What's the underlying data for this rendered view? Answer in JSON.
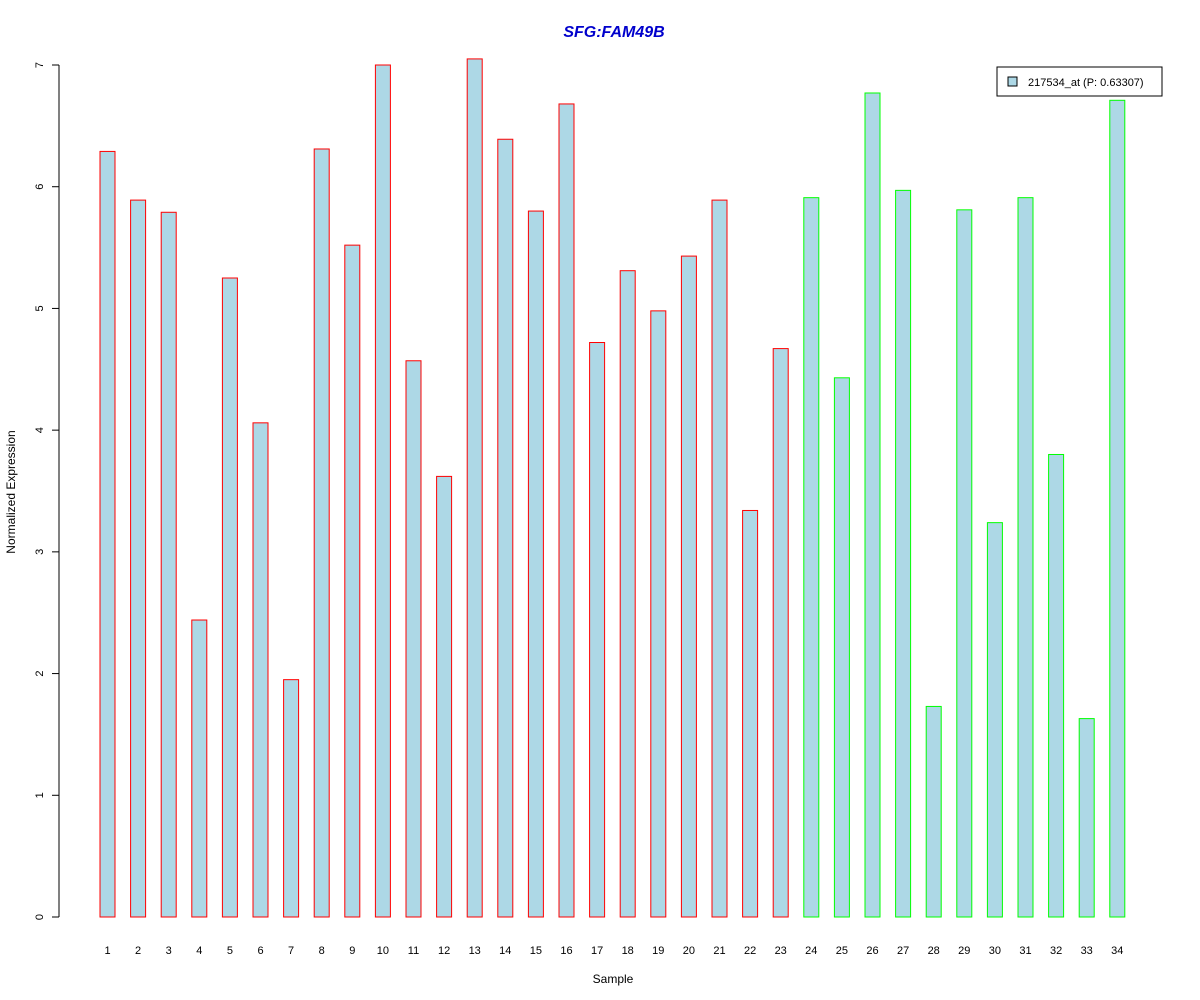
{
  "chart_data": {
    "type": "bar",
    "title": "SFG:FAM49B",
    "xlabel": "Sample",
    "ylabel": "Normalized Expression",
    "ylim": [
      0,
      7
    ],
    "yticks": [
      0,
      1,
      2,
      3,
      4,
      5,
      6,
      7
    ],
    "grid": false,
    "legend_position": "top-right",
    "categories": [
      "1",
      "2",
      "3",
      "4",
      "5",
      "6",
      "7",
      "8",
      "9",
      "10",
      "11",
      "12",
      "13",
      "14",
      "15",
      "16",
      "17",
      "18",
      "19",
      "20",
      "21",
      "22",
      "23",
      "24",
      "25",
      "26",
      "27",
      "28",
      "29",
      "30",
      "31",
      "32",
      "33",
      "34"
    ],
    "series": [
      {
        "name": "217534_at (P: 0.63307)",
        "values": [
          6.29,
          5.89,
          5.79,
          2.44,
          5.25,
          4.06,
          1.95,
          6.31,
          5.52,
          7.0,
          4.57,
          3.62,
          7.05,
          6.39,
          5.8,
          6.68,
          4.72,
          5.31,
          4.98,
          5.43,
          5.89,
          3.34,
          4.67,
          5.91,
          4.43,
          6.77,
          5.97,
          1.73,
          5.81,
          3.24,
          5.91,
          3.8,
          1.63,
          6.71
        ]
      }
    ],
    "groups": [
      "red",
      "red",
      "red",
      "red",
      "red",
      "red",
      "red",
      "red",
      "red",
      "red",
      "red",
      "red",
      "red",
      "red",
      "red",
      "red",
      "red",
      "red",
      "red",
      "red",
      "red",
      "red",
      "red",
      "green",
      "green",
      "green",
      "green",
      "green",
      "green",
      "green",
      "green",
      "green",
      "green",
      "green"
    ]
  },
  "colors": {
    "bar_fill": "#add8e6",
    "group_red": "#ff0000",
    "group_green": "#00ff00",
    "title": "#0000cc",
    "axis": "#000000"
  }
}
